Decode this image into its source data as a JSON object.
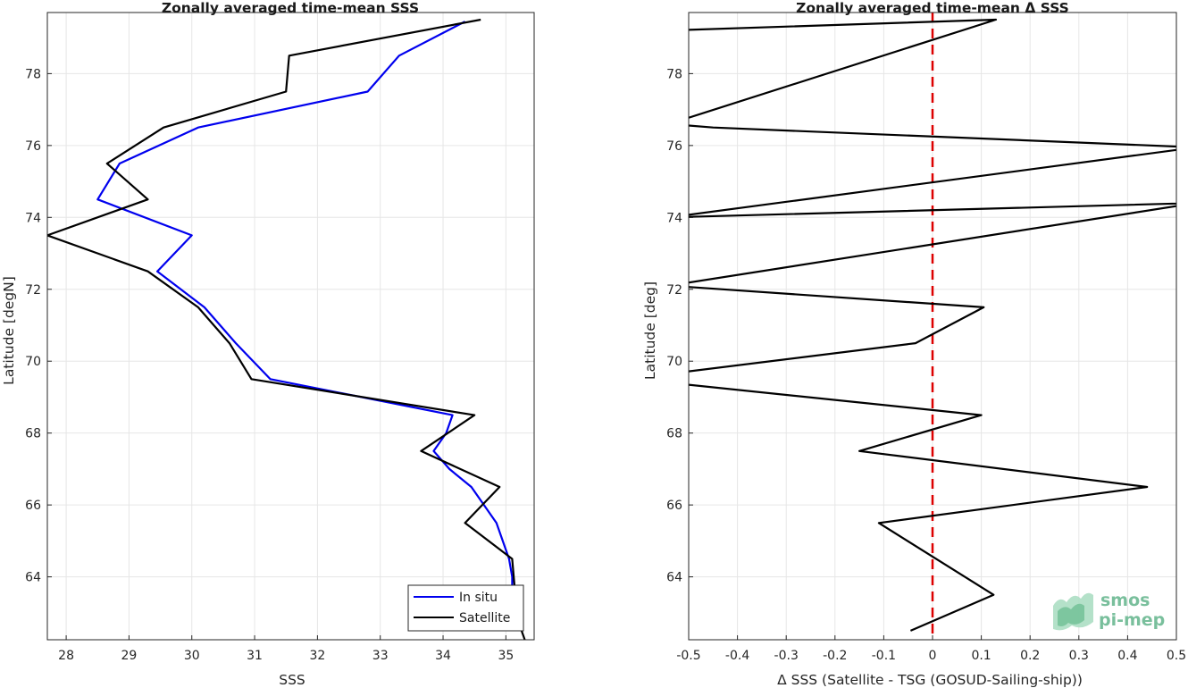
{
  "chart_data": [
    {
      "type": "line",
      "title": "Zonally averaged time-mean SSS",
      "xlabel": "SSS",
      "ylabel": "Latitude [degN]",
      "xlim": [
        27.7,
        35.45
      ],
      "ylim": [
        62.25,
        79.7
      ],
      "xticks": [
        "28",
        "29",
        "30",
        "31",
        "32",
        "33",
        "34",
        "35"
      ],
      "yticks": [
        "64",
        "66",
        "68",
        "70",
        "72",
        "74",
        "76",
        "78"
      ],
      "grid": true,
      "legend_position": "bottom-right",
      "series": [
        {
          "name": "In situ",
          "color": "#0000ee",
          "points": [
            [
              34.35,
              79.45
            ],
            [
              33.3,
              78.5
            ],
            [
              32.8,
              77.5
            ],
            [
              30.1,
              76.5
            ],
            [
              28.85,
              75.5
            ],
            [
              28.5,
              74.5
            ],
            [
              30.0,
              73.5
            ],
            [
              29.45,
              72.5
            ],
            [
              30.2,
              71.5
            ],
            [
              30.7,
              70.5
            ],
            [
              31.25,
              69.5
            ],
            [
              34.15,
              68.5
            ],
            [
              34.05,
              68.0
            ],
            [
              33.85,
              67.5
            ],
            [
              34.1,
              67.0
            ],
            [
              34.45,
              66.5
            ],
            [
              34.85,
              65.5
            ],
            [
              35.05,
              64.5
            ],
            [
              35.1,
              64.0
            ],
            [
              35.1,
              63.5
            ],
            [
              35.15,
              63.0
            ],
            [
              35.2,
              62.5
            ]
          ]
        },
        {
          "name": "Satellite",
          "color": "#000000",
          "points": [
            [
              34.6,
              79.5
            ],
            [
              31.55,
              78.5
            ],
            [
              31.5,
              77.5
            ],
            [
              29.55,
              76.5
            ],
            [
              28.65,
              75.5
            ],
            [
              29.3,
              74.5
            ],
            [
              27.7,
              73.5
            ],
            [
              29.3,
              72.5
            ],
            [
              30.1,
              71.5
            ],
            [
              30.6,
              70.5
            ],
            [
              30.95,
              69.5
            ],
            [
              34.5,
              68.5
            ],
            [
              33.65,
              67.5
            ],
            [
              34.9,
              66.5
            ],
            [
              34.35,
              65.5
            ],
            [
              35.1,
              64.5
            ],
            [
              35.15,
              63.5
            ],
            [
              35.25,
              62.5
            ],
            [
              35.3,
              62.25
            ]
          ]
        }
      ]
    },
    {
      "type": "line",
      "title": "Zonally averaged time-mean Δ SSS",
      "xlabel": "Δ SSS (Satellite - TSG (GOSUD-Sailing-ship))",
      "ylabel": "Latitude [deg]",
      "xlim": [
        -0.5,
        0.5
      ],
      "ylim": [
        62.25,
        79.7
      ],
      "xticks": [
        "-0.5",
        "-0.4",
        "-0.3",
        "-0.2",
        "-0.1",
        "0",
        "0.1",
        "0.2",
        "0.3",
        "0.4",
        "0.5"
      ],
      "yticks": [
        "64",
        "66",
        "68",
        "70",
        "72",
        "74",
        "76",
        "78"
      ],
      "grid": true,
      "reference_line": {
        "x": 0,
        "color": "#dd0000",
        "style": "dashed"
      },
      "series": [
        {
          "color": "#000000",
          "points": [
            [
              -0.54,
              79.2
            ],
            [
              0.13,
              79.5
            ],
            [
              -0.54,
              76.6
            ],
            [
              -0.45,
              76.5
            ],
            [
              0.54,
              75.95
            ],
            [
              -0.54,
              74.0
            ],
            [
              0.54,
              74.4
            ],
            [
              -0.54,
              72.1
            ],
            [
              0.105,
              71.5
            ],
            [
              -0.035,
              70.5
            ],
            [
              -0.54,
              69.65
            ],
            [
              -0.54,
              69.4
            ],
            [
              0.1,
              68.5
            ],
            [
              -0.15,
              67.5
            ],
            [
              0.44,
              66.5
            ],
            [
              -0.11,
              65.5
            ],
            [
              0.125,
              63.5
            ],
            [
              -0.045,
              62.5
            ]
          ]
        }
      ]
    }
  ],
  "logo": {
    "line1": "smos",
    "line2": "pi-mep"
  }
}
